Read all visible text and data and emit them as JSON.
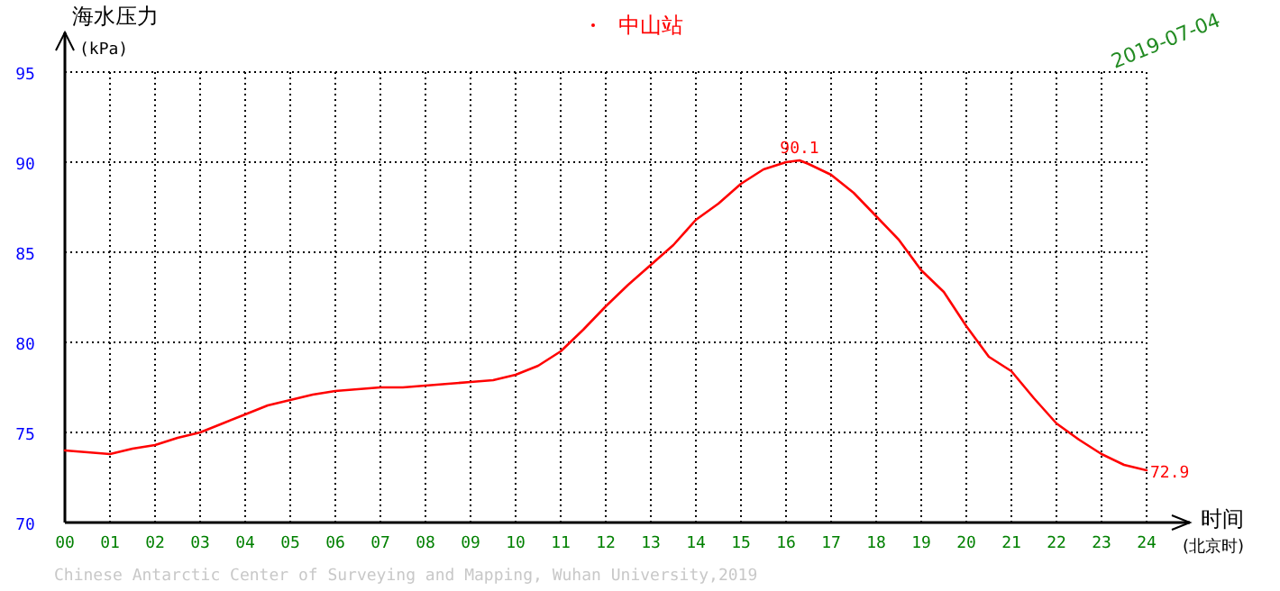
{
  "chart_data": {
    "type": "line",
    "title": "中山站",
    "ylabel": "海水压力\n(kPa)",
    "xlabel": "时间\n(北京时)",
    "annotations": [
      "2019-07-04",
      "Chinese Antarctic Center of Surveying and Mapping, Wuhan University,2019",
      {
        "text": "90.1",
        "x": 16.3,
        "y": 90.1
      },
      {
        "text": "72.9",
        "x": 24,
        "y": 72.9
      }
    ],
    "x": [
      0,
      0.5,
      1,
      1.5,
      2,
      2.5,
      3,
      3.5,
      4,
      4.5,
      5,
      5.5,
      6,
      6.5,
      7,
      7.5,
      8,
      8.5,
      9,
      9.5,
      10,
      10.5,
      11,
      11.5,
      12,
      12.5,
      13,
      13.5,
      14,
      14.5,
      15,
      15.5,
      16,
      16.3,
      16.5,
      17,
      17.5,
      18,
      18.5,
      19,
      19.5,
      20,
      20.5,
      21,
      21.5,
      22,
      22.5,
      23,
      23.5,
      24
    ],
    "series": [
      {
        "color": "#ff0000",
        "values": [
          74.0,
          73.9,
          73.8,
          74.1,
          74.3,
          74.7,
          75.0,
          75.5,
          76.0,
          76.5,
          76.8,
          77.1,
          77.3,
          77.4,
          77.5,
          77.5,
          77.6,
          77.7,
          77.8,
          77.9,
          78.2,
          78.7,
          79.5,
          80.7,
          82.0,
          83.2,
          84.3,
          85.4,
          86.8,
          87.7,
          88.8,
          89.6,
          90.0,
          90.1,
          89.9,
          89.3,
          88.3,
          87.0,
          85.7,
          84.0,
          82.8,
          80.9,
          79.2,
          78.4,
          76.9,
          75.5,
          74.6,
          73.8,
          73.2,
          72.9
        ]
      }
    ],
    "xlim": [
      0,
      24
    ],
    "ylim": [
      70,
      95
    ],
    "xticks": [
      {
        "value": 0,
        "label": "00"
      },
      {
        "value": 1,
        "label": "01"
      },
      {
        "value": 2,
        "label": "02"
      },
      {
        "value": 3,
        "label": "03"
      },
      {
        "value": 4,
        "label": "04"
      },
      {
        "value": 5,
        "label": "05"
      },
      {
        "value": 6,
        "label": "06"
      },
      {
        "value": 7,
        "label": "07"
      },
      {
        "value": 8,
        "label": "08"
      },
      {
        "value": 9,
        "label": "09"
      },
      10,
      11,
      12,
      13,
      14,
      15,
      16,
      17,
      18,
      19,
      20,
      21,
      22,
      23,
      24
    ],
    "yticks": [
      70,
      75,
      80,
      85,
      90,
      95
    ],
    "grid": true,
    "line_style": "solid",
    "marker": "none"
  }
}
